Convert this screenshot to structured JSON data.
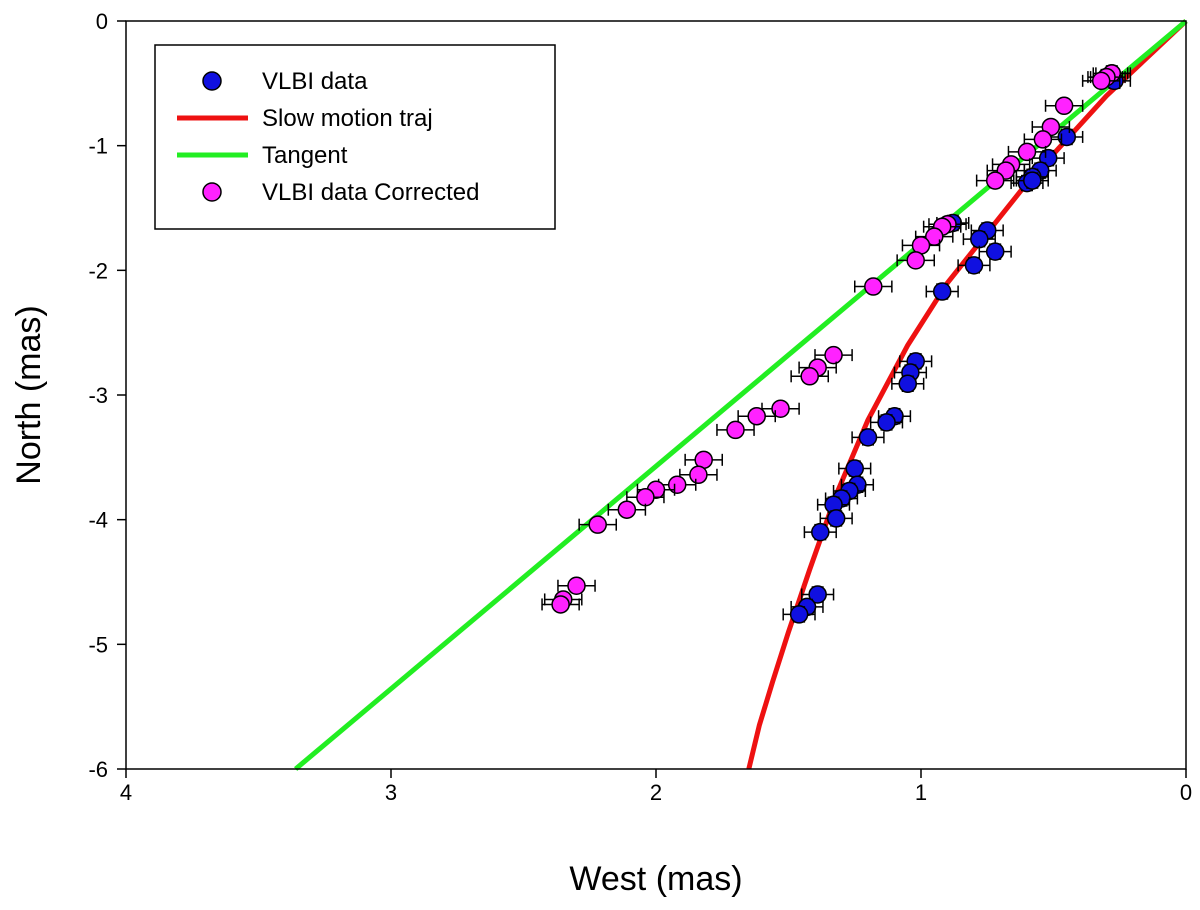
{
  "chart_data": {
    "type": "scatter",
    "title": "",
    "xlabel": "West (mas)",
    "ylabel": "North (mas)",
    "xlim": [
      4,
      0
    ],
    "ylim": [
      -6,
      0
    ],
    "x_ticks": [
      4,
      3,
      2,
      1,
      0
    ],
    "y_ticks": [
      0,
      -1,
      -2,
      -3,
      -4,
      -5,
      -6
    ],
    "legend_position": "top-left",
    "colors": {
      "vlbi": "#1010e0",
      "slow": "#ee1111",
      "tangent": "#22ee22",
      "corrected": "#ff22ff"
    },
    "legend": [
      {
        "label": "VLBI data",
        "kind": "marker",
        "color_key": "vlbi"
      },
      {
        "label": "Slow motion traj",
        "kind": "line",
        "color_key": "slow"
      },
      {
        "label": "Tangent",
        "kind": "line",
        "color_key": "tangent"
      },
      {
        "label": "VLBI data Corrected",
        "kind": "marker",
        "color_key": "corrected"
      }
    ],
    "series": [
      {
        "name": "VLBI data",
        "kind": "scatter",
        "color_key": "vlbi",
        "xerr": 0.06,
        "yerr": 0.06,
        "x": [
          0.28,
          0.3,
          0.27,
          0.45,
          0.52,
          0.55,
          0.58,
          0.6,
          0.58,
          0.75,
          0.78,
          0.72,
          0.8,
          0.92,
          0.88,
          1.02,
          1.04,
          1.05,
          1.1,
          1.13,
          1.2,
          1.25,
          1.24,
          1.27,
          1.3,
          1.33,
          1.32,
          1.38,
          1.39,
          1.43,
          1.46
        ],
        "y": [
          -0.42,
          -0.45,
          -0.48,
          -0.93,
          -1.1,
          -1.2,
          -1.25,
          -1.3,
          -1.28,
          -1.68,
          -1.75,
          -1.85,
          -1.96,
          -2.17,
          -1.62,
          -2.73,
          -2.82,
          -2.91,
          -3.17,
          -3.22,
          -3.34,
          -3.59,
          -3.72,
          -3.77,
          -3.83,
          -3.88,
          -3.99,
          -4.1,
          -4.6,
          -4.7,
          -4.76
        ]
      },
      {
        "name": "VLBI data Corrected",
        "kind": "scatter",
        "color_key": "corrected",
        "xerr": 0.07,
        "yerr": 0.05,
        "x": [
          0.28,
          0.3,
          0.32,
          0.46,
          0.51,
          0.54,
          0.6,
          0.66,
          0.68,
          0.72,
          0.9,
          0.92,
          0.95,
          1.0,
          1.02,
          1.18,
          1.33,
          1.39,
          1.42,
          1.53,
          1.62,
          1.7,
          1.82,
          1.84,
          1.92,
          2.0,
          2.04,
          2.11,
          2.22,
          2.3,
          2.35,
          2.36
        ],
        "y": [
          -0.42,
          -0.45,
          -0.48,
          -0.68,
          -0.85,
          -0.95,
          -1.05,
          -1.15,
          -1.2,
          -1.28,
          -1.63,
          -1.65,
          -1.73,
          -1.8,
          -1.92,
          -2.13,
          -2.68,
          -2.78,
          -2.85,
          -3.11,
          -3.17,
          -3.28,
          -3.52,
          -3.64,
          -3.72,
          -3.76,
          -3.82,
          -3.92,
          -4.04,
          -4.53,
          -4.64,
          -4.68
        ]
      },
      {
        "name": "Slow motion traj",
        "kind": "line",
        "color_key": "slow",
        "x": [
          0.0,
          0.3,
          0.6,
          0.9,
          1.05,
          1.2,
          1.32,
          1.42,
          1.5,
          1.56,
          1.61,
          1.65
        ],
        "y": [
          0.0,
          -0.6,
          -1.3,
          -2.1,
          -2.6,
          -3.2,
          -3.8,
          -4.4,
          -4.9,
          -5.3,
          -5.65,
          -6.0
        ]
      },
      {
        "name": "Tangent",
        "kind": "line",
        "color_key": "tangent",
        "x": [
          0.0,
          3.36
        ],
        "y": [
          0.0,
          -6.0
        ]
      }
    ]
  }
}
